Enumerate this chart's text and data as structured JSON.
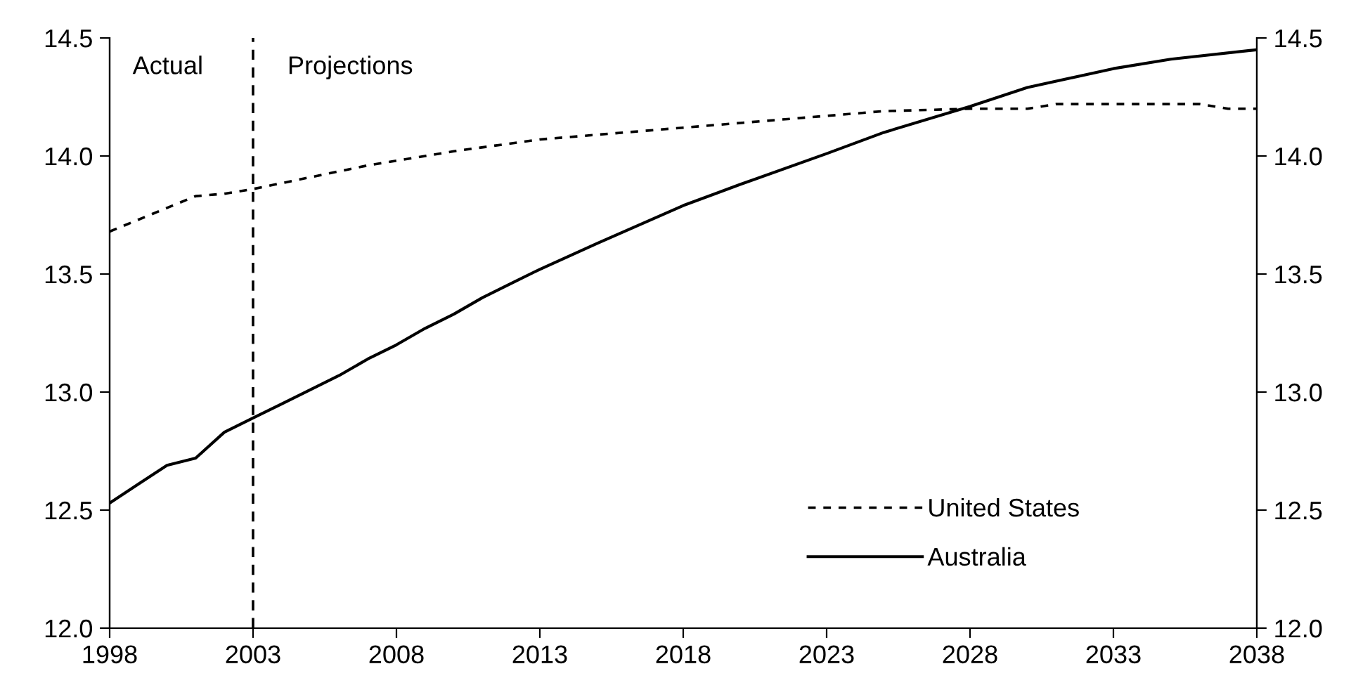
{
  "chart_data": {
    "type": "line",
    "xlim": [
      1998,
      2038
    ],
    "xticks": [
      1998,
      2003,
      2008,
      2013,
      2018,
      2023,
      2028,
      2033,
      2038
    ],
    "ylim": [
      12.0,
      14.5
    ],
    "yticks": [
      {
        "value": 12.0,
        "label": "12.0"
      },
      {
        "value": 12.5,
        "label": "12.5"
      },
      {
        "value": 13.0,
        "label": "13.0"
      },
      {
        "value": 13.5,
        "label": "13.5"
      },
      {
        "value": 14.0,
        "label": "14.0"
      },
      {
        "value": 14.5,
        "label": "14.5"
      }
    ],
    "y2lim": [
      12.0,
      14.5
    ],
    "y2ticks": [
      {
        "value": 12.0,
        "label": "12.0"
      },
      {
        "value": 12.5,
        "label": "12.5"
      },
      {
        "value": 13.0,
        "label": "13.0"
      },
      {
        "value": 13.5,
        "label": "13.5"
      },
      {
        "value": 14.0,
        "label": "14.0"
      },
      {
        "value": 14.5,
        "label": "14.5"
      }
    ],
    "grid": false,
    "legend": "bottom right",
    "marker": "none",
    "ref_lines": [
      {
        "axis": "x",
        "value": 2003,
        "label": null,
        "line_style": "dashed",
        "color": "#000000"
      }
    ],
    "annotations": [
      "Actual",
      "Projections"
    ],
    "series": [
      {
        "name": "United States",
        "color": "#000000",
        "line_style": "dotted",
        "x": [
          1998,
          2000,
          2001,
          2002,
          2003,
          2005,
          2007,
          2008,
          2010,
          2013,
          2015,
          2018,
          2020,
          2023,
          2025,
          2028,
          2030,
          2031,
          2036,
          2037,
          2038
        ],
        "values": [
          13.68,
          13.78,
          13.83,
          13.84,
          13.86,
          13.91,
          13.96,
          13.98,
          14.02,
          14.07,
          14.09,
          14.12,
          14.14,
          14.17,
          14.19,
          14.2,
          14.2,
          14.22,
          14.22,
          14.2,
          14.2
        ]
      },
      {
        "name": "Australia",
        "color": "#000000",
        "line_style": "solid",
        "x": [
          1998,
          1999,
          2000,
          2001,
          2002,
          2003,
          2004,
          2005,
          2006,
          2007,
          2008,
          2009,
          2010,
          2011,
          2012,
          2013,
          2015,
          2018,
          2020,
          2023,
          2025,
          2028,
          2030,
          2033,
          2035,
          2038
        ],
        "values": [
          12.53,
          12.61,
          12.69,
          12.72,
          12.83,
          12.89,
          12.95,
          13.01,
          13.07,
          13.14,
          13.2,
          13.27,
          13.33,
          13.4,
          13.46,
          13.52,
          13.63,
          13.79,
          13.88,
          14.01,
          14.1,
          14.21,
          14.29,
          14.37,
          14.41,
          14.45
        ]
      }
    ]
  }
}
